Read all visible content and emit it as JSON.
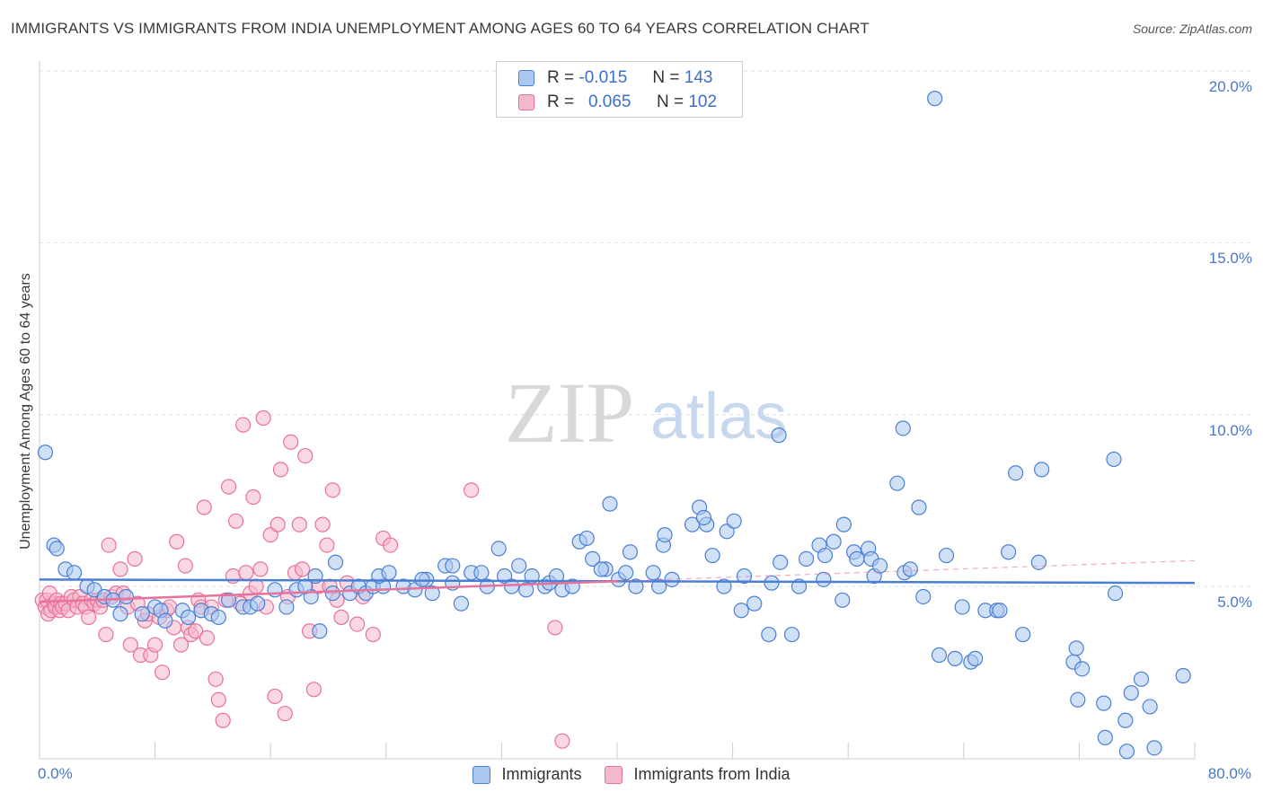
{
  "title": "IMMIGRANTS VS IMMIGRANTS FROM INDIA UNEMPLOYMENT AMONG AGES 60 TO 64 YEARS CORRELATION CHART",
  "source": "Source: ZipAtlas.com",
  "watermark": "ZIPatlas",
  "legend": {
    "row1": {
      "r_label": "R =",
      "r_value": "-0.015",
      "n_label": "N =",
      "n_value": "143"
    },
    "row2": {
      "r_label": "R =",
      "r_value": "0.065",
      "n_label": "N =",
      "n_value": "102"
    }
  },
  "colors": {
    "blue": "#4a7fd4",
    "blue_fill": "#aac8f0",
    "pink": "#e8729a",
    "pink_fill": "#f5b8cc"
  },
  "chart_data": {
    "type": "scatter",
    "title": "IMMIGRANTS VS IMMIGRANTS FROM INDIA UNEMPLOYMENT AMONG AGES 60 TO 64 YEARS CORRELATION CHART",
    "xlabel": "",
    "ylabel": "Unemployment Among Ages 60 to 64 years",
    "xlim": [
      0,
      80
    ],
    "ylim": [
      0,
      20.5
    ],
    "x_tick_labels": [
      "0.0%",
      "80.0%"
    ],
    "y_ticks": [
      5,
      10,
      15,
      20
    ],
    "y_tick_labels": [
      "5.0%",
      "10.0%",
      "15.0%",
      "20.0%"
    ],
    "grid": true,
    "legend_position": "bottom-center",
    "series": [
      {
        "name": "Immigrants",
        "color": "#4a7fd4",
        "trend": {
          "x": [
            0,
            80
          ],
          "y": [
            5.2,
            5.1
          ]
        },
        "points": [
          [
            0.4,
            8.9
          ],
          [
            1,
            6.2
          ],
          [
            1.2,
            6.1
          ],
          [
            1.8,
            5.5
          ],
          [
            2.4,
            5.4
          ],
          [
            3.3,
            5.0
          ],
          [
            3.8,
            4.9
          ],
          [
            4.5,
            4.7
          ],
          [
            5.1,
            4.6
          ],
          [
            5.6,
            4.2
          ],
          [
            6.0,
            4.7
          ],
          [
            7.1,
            4.2
          ],
          [
            8.0,
            4.4
          ],
          [
            8.4,
            4.3
          ],
          [
            8.7,
            4.0
          ],
          [
            9.9,
            4.3
          ],
          [
            10.3,
            4.1
          ],
          [
            11.2,
            4.3
          ],
          [
            11.9,
            4.2
          ],
          [
            12.4,
            4.1
          ],
          [
            13.1,
            4.6
          ],
          [
            14.1,
            4.4
          ],
          [
            14.6,
            4.4
          ],
          [
            15.1,
            4.5
          ],
          [
            16.3,
            4.9
          ],
          [
            17.1,
            4.4
          ],
          [
            17.8,
            4.9
          ],
          [
            18.8,
            4.7
          ],
          [
            18.4,
            5.0
          ],
          [
            19.1,
            5.3
          ],
          [
            19.4,
            3.7
          ],
          [
            20.3,
            4.8
          ],
          [
            20.5,
            5.7
          ],
          [
            21.5,
            4.8
          ],
          [
            22.1,
            5.0
          ],
          [
            22.6,
            4.8
          ],
          [
            23.1,
            5.0
          ],
          [
            23.8,
            5.0
          ],
          [
            23.5,
            5.3
          ],
          [
            24.2,
            5.4
          ],
          [
            25.2,
            5.0
          ],
          [
            26.0,
            4.9
          ],
          [
            26.8,
            5.2
          ],
          [
            26.5,
            5.2
          ],
          [
            27.2,
            4.8
          ],
          [
            28.1,
            5.6
          ],
          [
            28.6,
            5.6
          ],
          [
            29.2,
            4.5
          ],
          [
            28.6,
            5.1
          ],
          [
            29.9,
            5.4
          ],
          [
            30.6,
            5.4
          ],
          [
            31.0,
            5.0
          ],
          [
            32.2,
            5.3
          ],
          [
            32.7,
            5.0
          ],
          [
            34.1,
            5.3
          ],
          [
            33.7,
            4.9
          ],
          [
            31.8,
            6.1
          ],
          [
            35.0,
            5.0
          ],
          [
            33.2,
            5.6
          ],
          [
            35.3,
            5.1
          ],
          [
            35.8,
            5.3
          ],
          [
            36.2,
            4.9
          ],
          [
            36.9,
            5.0
          ],
          [
            37.4,
            6.3
          ],
          [
            37.9,
            6.4
          ],
          [
            38.3,
            5.8
          ],
          [
            39.2,
            5.5
          ],
          [
            38.9,
            5.5
          ],
          [
            40.1,
            5.2
          ],
          [
            39.5,
            7.4
          ],
          [
            40.6,
            5.4
          ],
          [
            40.9,
            6.0
          ],
          [
            41.3,
            5.0
          ],
          [
            42.5,
            5.4
          ],
          [
            42.9,
            5.0
          ],
          [
            43.2,
            6.2
          ],
          [
            43.8,
            5.2
          ],
          [
            43.3,
            6.5
          ],
          [
            45.2,
            6.8
          ],
          [
            45.7,
            7.3
          ],
          [
            46.2,
            6.8
          ],
          [
            46.0,
            7.0
          ],
          [
            46.6,
            5.9
          ],
          [
            47.4,
            5.0
          ],
          [
            47.6,
            6.6
          ],
          [
            48.1,
            6.9
          ],
          [
            48.6,
            4.3
          ],
          [
            48.8,
            5.3
          ],
          [
            49.5,
            4.5
          ],
          [
            50.5,
            3.6
          ],
          [
            50.7,
            5.1
          ],
          [
            51.3,
            5.7
          ],
          [
            52.1,
            3.6
          ],
          [
            52.6,
            5.0
          ],
          [
            53.1,
            5.8
          ],
          [
            54.0,
            6.2
          ],
          [
            54.3,
            5.2
          ],
          [
            54.4,
            5.9
          ],
          [
            55.0,
            6.3
          ],
          [
            55.6,
            4.6
          ],
          [
            55.7,
            6.8
          ],
          [
            56.4,
            6.0
          ],
          [
            56.6,
            5.8
          ],
          [
            57.4,
            6.1
          ],
          [
            57.6,
            5.8
          ],
          [
            57.8,
            5.3
          ],
          [
            58.2,
            5.6
          ],
          [
            59.8,
            9.6
          ],
          [
            59.4,
            8.0
          ],
          [
            59.9,
            5.4
          ],
          [
            60.3,
            5.5
          ],
          [
            60.9,
            7.3
          ],
          [
            61.2,
            4.7
          ],
          [
            62.3,
            3.0
          ],
          [
            62.8,
            5.9
          ],
          [
            63.4,
            2.9
          ],
          [
            63.9,
            4.4
          ],
          [
            64.5,
            2.8
          ],
          [
            64.8,
            2.9
          ],
          [
            65.5,
            4.3
          ],
          [
            66.3,
            4.3
          ],
          [
            66.5,
            4.3
          ],
          [
            67.1,
            6.0
          ],
          [
            67.6,
            8.3
          ],
          [
            69.2,
            5.7
          ],
          [
            69.4,
            8.4
          ],
          [
            71.6,
            2.8
          ],
          [
            72.2,
            2.6
          ],
          [
            71.9,
            1.7
          ],
          [
            73.7,
            1.6
          ],
          [
            73.8,
            0.6
          ],
          [
            74.5,
            4.8
          ],
          [
            75.2,
            1.1
          ],
          [
            75.6,
            1.9
          ],
          [
            76.3,
            2.3
          ],
          [
            76.9,
            1.5
          ],
          [
            77.2,
            0.3
          ],
          [
            79.2,
            2.4
          ],
          [
            75.3,
            0.2
          ],
          [
            71.8,
            3.2
          ],
          [
            62.0,
            19.2
          ],
          [
            51.2,
            9.4
          ],
          [
            68.1,
            3.6
          ],
          [
            74.4,
            8.7
          ]
        ]
      },
      {
        "name": "Immigrants from India",
        "color": "#e8729a",
        "trend": {
          "x": [
            0,
            40
          ],
          "y": [
            4.55,
            5.15
          ]
        },
        "trend_extension": {
          "x": [
            40,
            80
          ],
          "y": [
            5.15,
            5.75
          ]
        },
        "points": [
          [
            0.2,
            4.6
          ],
          [
            0.4,
            4.4
          ],
          [
            0.5,
            4.6
          ],
          [
            0.6,
            4.2
          ],
          [
            0.7,
            4.8
          ],
          [
            0.8,
            4.3
          ],
          [
            1.0,
            4.5
          ],
          [
            1.1,
            4.4
          ],
          [
            1.2,
            4.6
          ],
          [
            1.4,
            4.3
          ],
          [
            1.5,
            4.5
          ],
          [
            1.6,
            4.4
          ],
          [
            1.8,
            4.5
          ],
          [
            2.0,
            4.3
          ],
          [
            2.2,
            4.7
          ],
          [
            2.4,
            4.6
          ],
          [
            2.6,
            4.4
          ],
          [
            2.8,
            4.7
          ],
          [
            3.0,
            4.5
          ],
          [
            3.2,
            4.4
          ],
          [
            3.4,
            4.1
          ],
          [
            3.6,
            4.6
          ],
          [
            3.8,
            4.5
          ],
          [
            4.0,
            4.6
          ],
          [
            4.2,
            4.4
          ],
          [
            4.4,
            4.6
          ],
          [
            4.6,
            3.6
          ],
          [
            4.8,
            6.2
          ],
          [
            5.0,
            4.7
          ],
          [
            5.3,
            4.8
          ],
          [
            5.6,
            5.5
          ],
          [
            5.8,
            4.8
          ],
          [
            6.1,
            4.4
          ],
          [
            6.3,
            3.3
          ],
          [
            6.6,
            5.8
          ],
          [
            6.8,
            4.5
          ],
          [
            7.0,
            3.0
          ],
          [
            7.3,
            4.0
          ],
          [
            7.5,
            4.2
          ],
          [
            7.7,
            3.0
          ],
          [
            8.0,
            3.3
          ],
          [
            8.3,
            4.1
          ],
          [
            8.5,
            2.5
          ],
          [
            8.8,
            4.3
          ],
          [
            9.0,
            4.4
          ],
          [
            9.3,
            3.8
          ],
          [
            9.5,
            6.3
          ],
          [
            9.8,
            3.3
          ],
          [
            10.1,
            5.6
          ],
          [
            10.3,
            3.8
          ],
          [
            10.5,
            3.6
          ],
          [
            10.8,
            3.7
          ],
          [
            11.0,
            4.6
          ],
          [
            11.2,
            4.4
          ],
          [
            11.4,
            7.3
          ],
          [
            11.6,
            3.5
          ],
          [
            11.9,
            4.4
          ],
          [
            12.2,
            2.3
          ],
          [
            12.4,
            1.7
          ],
          [
            12.7,
            1.1
          ],
          [
            12.9,
            4.6
          ],
          [
            13.1,
            7.9
          ],
          [
            13.4,
            5.3
          ],
          [
            13.6,
            6.9
          ],
          [
            13.9,
            4.5
          ],
          [
            14.1,
            9.7
          ],
          [
            14.3,
            5.4
          ],
          [
            14.6,
            4.8
          ],
          [
            14.8,
            7.6
          ],
          [
            15.0,
            5.0
          ],
          [
            15.3,
            5.5
          ],
          [
            15.5,
            9.9
          ],
          [
            15.7,
            4.4
          ],
          [
            16.0,
            6.5
          ],
          [
            16.3,
            1.8
          ],
          [
            16.5,
            6.8
          ],
          [
            16.7,
            8.4
          ],
          [
            17.0,
            1.3
          ],
          [
            17.2,
            4.7
          ],
          [
            17.4,
            9.2
          ],
          [
            17.7,
            5.4
          ],
          [
            18.0,
            6.8
          ],
          [
            18.2,
            5.5
          ],
          [
            18.4,
            8.8
          ],
          [
            18.7,
            3.7
          ],
          [
            19.0,
            2.0
          ],
          [
            19.3,
            5.0
          ],
          [
            19.6,
            6.8
          ],
          [
            19.9,
            6.2
          ],
          [
            20.1,
            5.0
          ],
          [
            20.3,
            7.8
          ],
          [
            20.6,
            4.6
          ],
          [
            20.9,
            4.1
          ],
          [
            21.3,
            5.1
          ],
          [
            22.0,
            3.9
          ],
          [
            22.4,
            4.7
          ],
          [
            23.1,
            3.6
          ],
          [
            23.8,
            6.4
          ],
          [
            24.3,
            6.2
          ],
          [
            29.9,
            7.8
          ],
          [
            35.7,
            3.8
          ],
          [
            36.2,
            0.5
          ]
        ]
      }
    ]
  }
}
